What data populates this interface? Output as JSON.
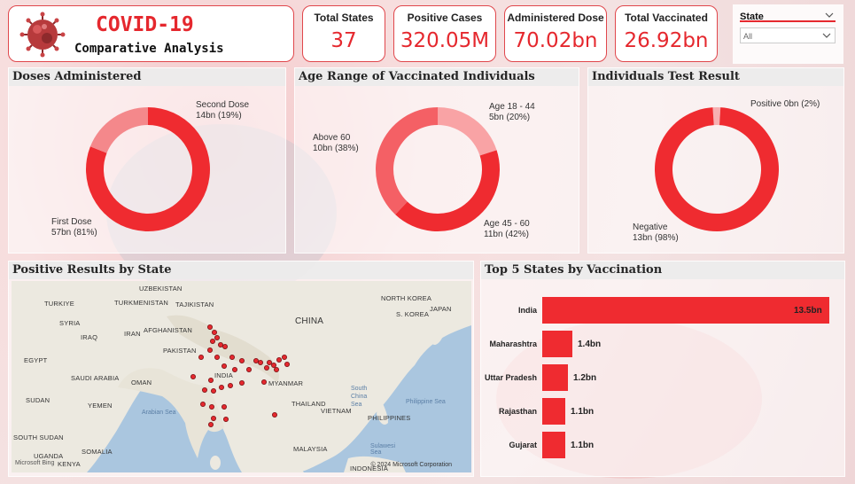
{
  "header": {
    "title": "COVID-19",
    "subtitle": "Comparative Analysis"
  },
  "kpis": [
    {
      "label": "Total States",
      "value": "37"
    },
    {
      "label": "Positive Cases",
      "value": "320.05M"
    },
    {
      "label": "Administered Dose",
      "value": "70.02bn"
    },
    {
      "label": "Total Vaccinated",
      "value": "26.92bn"
    }
  ],
  "slicer": {
    "label": "State",
    "selected": "All"
  },
  "doses": {
    "title": "Doses Administered",
    "slices": [
      {
        "name": "First Dose",
        "label": "57bn (81%)",
        "share": 0.81,
        "color": "#ef2b30"
      },
      {
        "name": "Second Dose",
        "label": "14bn (19%)",
        "share": 0.19,
        "color": "#f4888b"
      }
    ]
  },
  "age": {
    "title": "Age Range of Vaccinated Individuals",
    "slices": [
      {
        "name": "Age 18 - 44",
        "label": "5bn (20%)",
        "share": 0.2,
        "color": "#f9a3a5"
      },
      {
        "name": "Age 45 - 60",
        "label": "11bn (42%)",
        "share": 0.42,
        "color": "#ef2b30"
      },
      {
        "name": "Above 60",
        "label": "10bn (38%)",
        "share": 0.38,
        "color": "#f46065"
      }
    ]
  },
  "tests": {
    "title": "Individuals Test Result",
    "slices": [
      {
        "name": "Positive",
        "label": "0bn (2%)",
        "share": 0.02,
        "color": "#f7b0b2"
      },
      {
        "name": "Negative",
        "label": "13bn (98%)",
        "share": 0.98,
        "color": "#ef2b30"
      }
    ]
  },
  "map": {
    "title": "Positive Results by State",
    "countries": {
      "uzbekistan": "UZBEKISTAN",
      "turkiye": "TURKIYE",
      "turkmenistan": "TURKMENISTAN",
      "tajikistan": "TAJIKISTAN",
      "syria": "SYRIA",
      "iraq": "IRAQ",
      "iran": "IRAN",
      "afghanistan": "AFGHANISTAN",
      "pakistan": "PAKISTAN",
      "egypt": "EGYPT",
      "saudi": "SAUDI ARABIA",
      "oman": "OMAN",
      "india": "INDIA",
      "china": "CHINA",
      "north_korea": "NORTH KOREA",
      "s_korea": "S. KOREA",
      "japan": "JAPAN",
      "myanmar": "MYANMAR",
      "thailand": "THAILAND",
      "vietnam": "VIETNAM",
      "philippines": "PHILIPPINES",
      "sudan": "SUDAN",
      "yemen": "YEMEN",
      "south_sudan": "SOUTH SUDAN",
      "somalia": "SOMALIA",
      "uganda": "UGANDA",
      "kenya": "KENYA",
      "malaysia": "MALAYSIA",
      "indonesia": "INDONESIA"
    },
    "seas": {
      "arabian": "Arabian Sea",
      "south_china": "South China Sea",
      "philippine": "Philippine Sea",
      "sulawesi": "Sulawesi Sea"
    },
    "logo": "Microsoft Bing",
    "copyright": "© 2024 Microsoft Corporation"
  },
  "top5": {
    "title": "Top 5 States by Vaccination",
    "rows": [
      {
        "state": "India",
        "value": 13.5,
        "label": "13.5bn"
      },
      {
        "state": "Maharashtra",
        "value": 1.4,
        "label": "1.4bn"
      },
      {
        "state": "Uttar Pradesh",
        "value": 1.2,
        "label": "1.2bn"
      },
      {
        "state": "Rajasthan",
        "value": 1.1,
        "label": "1.1bn"
      },
      {
        "state": "Gujarat",
        "value": 1.1,
        "label": "1.1bn"
      }
    ]
  },
  "colors": {
    "accent": "#e5282e",
    "bar": "#ef2b30"
  }
}
